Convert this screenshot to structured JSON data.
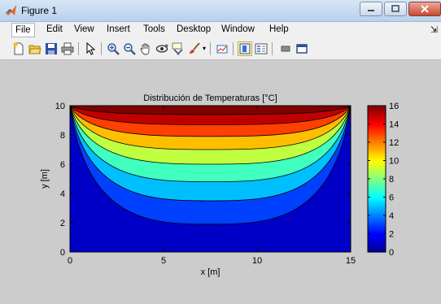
{
  "window": {
    "title": "Figure 1"
  },
  "menubar": {
    "items": [
      "File",
      "Edit",
      "View",
      "Insert",
      "Tools",
      "Desktop",
      "Window",
      "Help"
    ],
    "more": "⇲"
  },
  "toolbar": {
    "buttons": [
      "new-figure",
      "open-file",
      "save-figure",
      "print-figure",
      "edit-plot",
      "zoom-in",
      "zoom-out",
      "pan",
      "rotate-3d",
      "data-cursor",
      "brush",
      "link-plot",
      "insert-colorbar",
      "insert-legend",
      "hide-plot-tools",
      "show-plot-tools"
    ]
  },
  "chart_data": {
    "type": "contour",
    "title": "Distribución de Temperaturas [°C]",
    "xlabel": "x [m]",
    "ylabel": "y [m]",
    "xlim": [
      0,
      15
    ],
    "ylim": [
      0,
      10
    ],
    "xticks": [
      "0",
      "5",
      "10",
      "15"
    ],
    "yticks": [
      "0",
      "2",
      "4",
      "6",
      "8",
      "10"
    ],
    "colorbar": {
      "min": 0,
      "max": 16,
      "ticks": [
        "0",
        "2",
        "4",
        "6",
        "8",
        "10",
        "12",
        "14",
        "16"
      ],
      "colormap": "jet"
    },
    "levels": [
      0,
      2,
      4,
      6,
      8,
      10,
      12,
      14,
      16
    ],
    "level_min_y": [
      1.9,
      3.5,
      4.8,
      6.0,
      7.0,
      7.9,
      8.7,
      9.4
    ],
    "boundary": {
      "top_edge_temperature": 16,
      "other_edges_temperature": 0
    }
  }
}
